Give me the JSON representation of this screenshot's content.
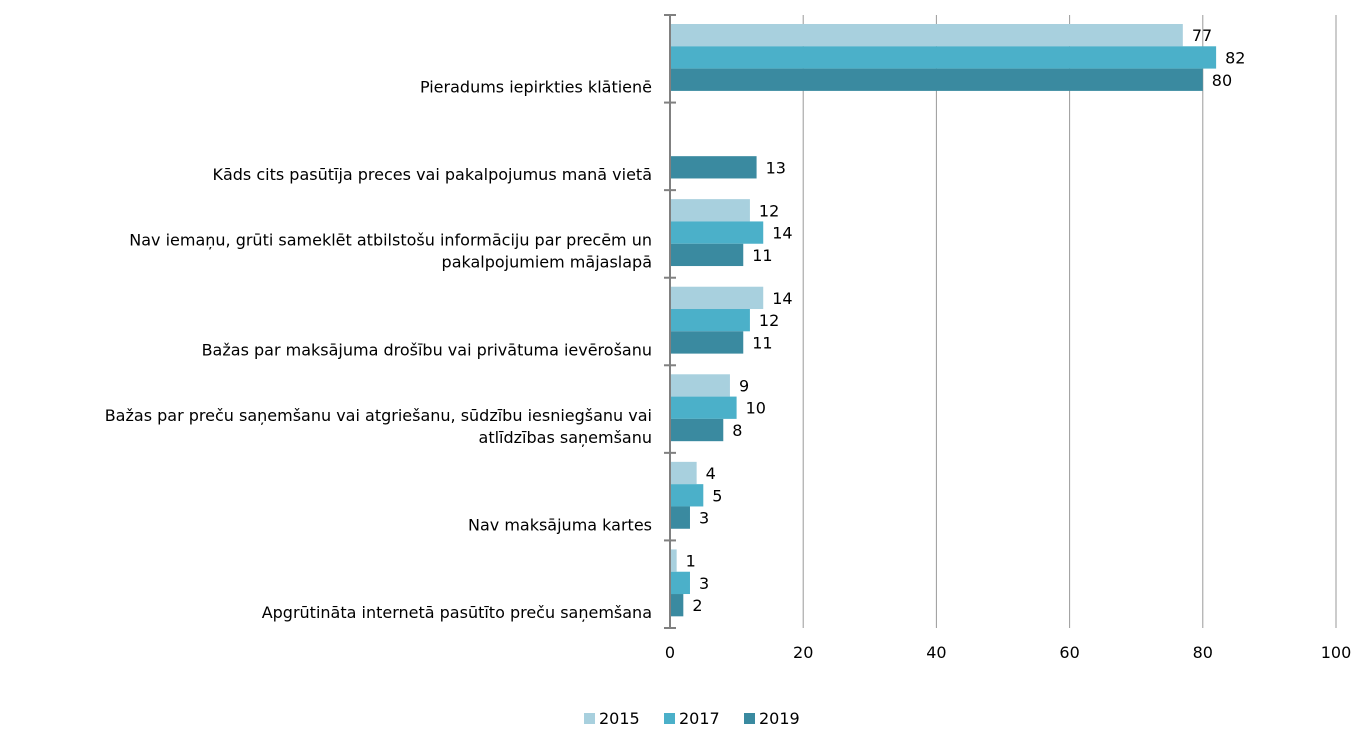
{
  "chart_data": {
    "type": "bar",
    "orientation": "horizontal",
    "categories": [
      [
        "Pieradums iepirkties klātienē"
      ],
      [
        "Kāds cits pasūtīja preces vai pakalpojumus manā vietā"
      ],
      [
        "Nav iemaņu, grūti sameklēt atbilstošu informāciju par precēm un",
        "pakalpojumiem mājaslapā"
      ],
      [
        "Bažas par maksājuma drošību vai privātuma ievērošanu"
      ],
      [
        "Bažas par preču saņemšanu vai atgriešanu, sūdzību iesniegšanu vai",
        "atlīdzības saņemšanu"
      ],
      [
        "Nav maksājuma kartes"
      ],
      [
        "Apgrūtināta internetā pasūtīto preču saņemšana"
      ]
    ],
    "series": [
      {
        "name": "2015",
        "color": "#a8d0de",
        "values": [
          77,
          null,
          12,
          14,
          9,
          4,
          1
        ]
      },
      {
        "name": "2017",
        "color": "#4bb0c9",
        "values": [
          82,
          null,
          14,
          12,
          10,
          5,
          3
        ]
      },
      {
        "name": "2019",
        "color": "#3a8aa0",
        "values": [
          80,
          13,
          11,
          11,
          8,
          3,
          2
        ]
      }
    ],
    "xlim": [
      0,
      100
    ],
    "xticks": [
      0,
      20,
      40,
      60,
      80,
      100
    ],
    "grid": true,
    "legend_position": "bottom"
  }
}
